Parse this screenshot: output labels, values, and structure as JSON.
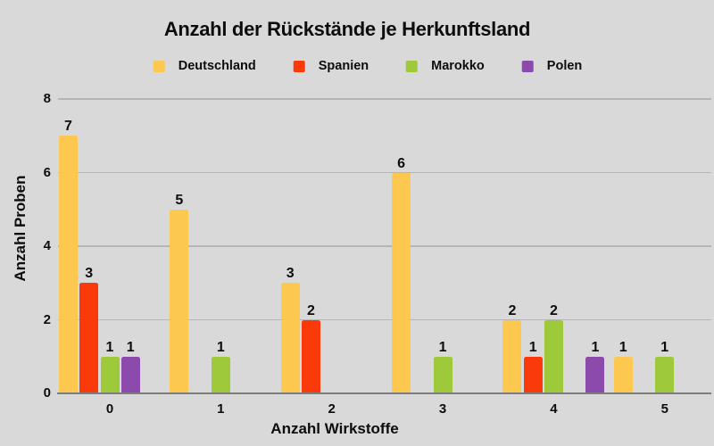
{
  "page": {
    "background": "#d9d9d9"
  },
  "chart_data": {
    "type": "bar",
    "title": "Anzahl der Rückstände je Herkunftsland",
    "xlabel": "Anzahl Wirkstoffe",
    "ylabel": "Anzahl Proben",
    "categories": [
      "0",
      "1",
      "2",
      "3",
      "4",
      "5"
    ],
    "ylim": [
      0,
      8
    ],
    "yticks": [
      0,
      2,
      4,
      6,
      8
    ],
    "grid": true,
    "legend_position": "top",
    "series": [
      {
        "name": "Deutschland",
        "color": "#fcc850",
        "values": [
          7,
          5,
          3,
          6,
          2,
          1
        ]
      },
      {
        "name": "Spanien",
        "color": "#fb3a0b",
        "values": [
          3,
          0,
          2,
          0,
          1,
          0
        ]
      },
      {
        "name": "Marokko",
        "color": "#9ec93b",
        "values": [
          1,
          1,
          0,
          1,
          2,
          1
        ]
      },
      {
        "name": "Polen",
        "color": "#8d4aad",
        "values": [
          1,
          0,
          0,
          0,
          1,
          0
        ]
      }
    ],
    "bars": [
      {
        "group": 0,
        "series": "Deutschland",
        "value": 7,
        "slot": 0
      },
      {
        "group": 0,
        "series": "Spanien",
        "value": 3,
        "slot": 1
      },
      {
        "group": 0,
        "series": "Marokko",
        "value": 1,
        "slot": 2
      },
      {
        "group": 0,
        "series": "Polen",
        "value": 1,
        "slot": 3
      },
      {
        "group": 1,
        "series": "Deutschland",
        "value": 5,
        "slot": 0
      },
      {
        "group": 1,
        "series": "Marokko",
        "value": 1,
        "slot": 2
      },
      {
        "group": 2,
        "series": "Deutschland",
        "value": 3,
        "slot": 0
      },
      {
        "group": 2,
        "series": "Spanien",
        "value": 2,
        "slot": 1
      },
      {
        "group": 3,
        "series": "Deutschland",
        "value": 6,
        "slot": 0
      },
      {
        "group": 3,
        "series": "Marokko",
        "value": 1,
        "slot": 2
      },
      {
        "group": 4,
        "series": "Deutschland",
        "value": 2,
        "slot": 0
      },
      {
        "group": 4,
        "series": "Spanien",
        "value": 1,
        "slot": 1
      },
      {
        "group": 4,
        "series": "Marokko",
        "value": 2,
        "slot": 2
      },
      {
        "group": 4,
        "series": "Polen",
        "value": 1,
        "slot": 4
      },
      {
        "group": 5,
        "series": "Deutschland",
        "value": 1,
        "slot": 0
      },
      {
        "group": 5,
        "series": "Marokko",
        "value": 1,
        "slot": 2
      }
    ]
  }
}
